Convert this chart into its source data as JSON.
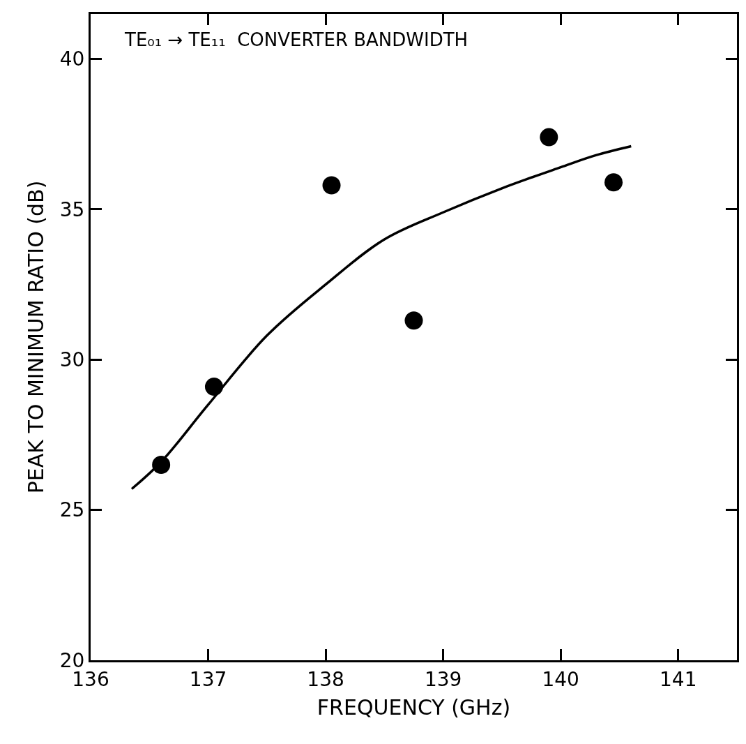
{
  "chart_data": {
    "type": "scatter",
    "title": "TE₀₁ → TE₁₁  CONVERTER BANDWIDTH",
    "xlabel": "FREQUENCY (GHz)",
    "ylabel": "PEAK TO MINIMUM RATIO (dB)",
    "x": [
      136.6,
      137.05,
      138.05,
      138.75,
      139.9,
      140.45
    ],
    "series": [
      {
        "color": "#000000",
        "values": [
          26.5,
          29.1,
          35.8,
          31.3,
          37.4,
          35.9
        ],
        "marker": "circle"
      },
      {
        "type": "line",
        "color": "#000000",
        "x": [
          136.35,
          136.6,
          137.0,
          137.5,
          138.0,
          138.5,
          139.0,
          139.5,
          140.0,
          140.3,
          140.6
        ],
        "values": [
          25.7,
          26.6,
          28.5,
          30.8,
          32.5,
          34.0,
          34.9,
          35.7,
          36.4,
          36.8,
          37.1
        ],
        "marker": "none",
        "line_style": "solid"
      }
    ],
    "xlim": [
      136,
      141.5
    ],
    "ylim": [
      20,
      41.5
    ],
    "xticks": [
      136,
      137,
      138,
      139,
      140,
      141
    ],
    "yticks": [
      20,
      25,
      30,
      35,
      40
    ],
    "legend": false
  }
}
